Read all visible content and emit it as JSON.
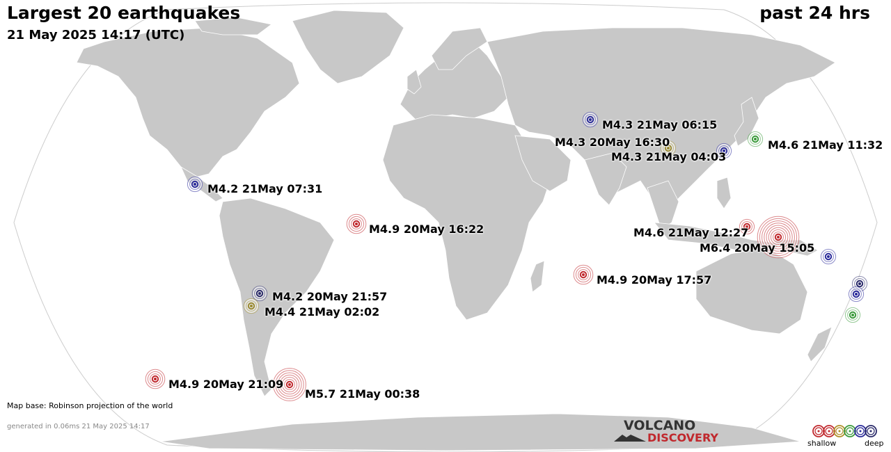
{
  "header": {
    "title": "Largest 20 earthquakes",
    "period": "past 24 hrs",
    "timestamp": "21 May 2025 14:17 (UTC)"
  },
  "footer": {
    "map_base": "Map base: Robinson projection of the world",
    "generated": "generated in 0.06ms 21 May 2025 14:17"
  },
  "logo": {
    "line1": "VOLCANO",
    "line2": "DISCOVERY"
  },
  "legend": {
    "shallow_label": "shallow",
    "deep_label": "deep",
    "colors": [
      "#c0282d",
      "#c0282d",
      "#b0902a",
      "#3a9a3a",
      "#2a2a9a",
      "#2a2a6a"
    ]
  },
  "colors": {
    "land": "#c8c8c8",
    "ocean": "#ffffff",
    "shallow": "#c0282d",
    "medium": "#9a8a30",
    "intermediate": "#3a9a3a",
    "deep": "#2a2a9a",
    "very_deep": "#2a2a6a"
  },
  "quakes": [
    {
      "label": "M4.3 21May 06:15",
      "magnitude": 4.3,
      "color": "#2a2a9a"
    },
    {
      "label": "M4.3 20May 16:30",
      "magnitude": 4.3,
      "color": "#9a8a30"
    },
    {
      "label": "M4.3 21May 04:03",
      "magnitude": 4.3,
      "color": "#2a2a9a"
    },
    {
      "label": "M4.6 21May 11:32",
      "magnitude": 4.6,
      "color": "#3a9a3a"
    },
    {
      "label": "M4.2 21May 07:31",
      "magnitude": 4.2,
      "color": "#2a2a9a"
    },
    {
      "label": "M4.9 20May 16:22",
      "magnitude": 4.9,
      "color": "#c0282d"
    },
    {
      "label": "M4.6 21May 12:27",
      "magnitude": 4.6,
      "color": "#c0282d"
    },
    {
      "label": "M6.4 20May 15:05",
      "magnitude": 6.4,
      "color": "#c0282d"
    },
    {
      "label": "M4.9 20May 17:57",
      "magnitude": 4.9,
      "color": "#c0282d"
    },
    {
      "label": "M4.2 20May 21:57",
      "magnitude": 4.2,
      "color": "#2a2a6a"
    },
    {
      "label": "M4.4 21May 02:02",
      "magnitude": 4.4,
      "color": "#9a8a30"
    },
    {
      "label": "M4.9 20May 21:09",
      "magnitude": 4.9,
      "color": "#c0282d"
    },
    {
      "label": "M5.7 21May 00:38",
      "magnitude": 5.7,
      "color": "#c0282d"
    },
    {
      "label": "",
      "magnitude": 4.5,
      "color": "#2a2a9a"
    },
    {
      "label": "",
      "magnitude": 4.5,
      "color": "#2a2a6a"
    },
    {
      "label": "",
      "magnitude": 4.5,
      "color": "#2a2a9a"
    },
    {
      "label": "",
      "magnitude": 4.5,
      "color": "#3a9a3a"
    }
  ]
}
